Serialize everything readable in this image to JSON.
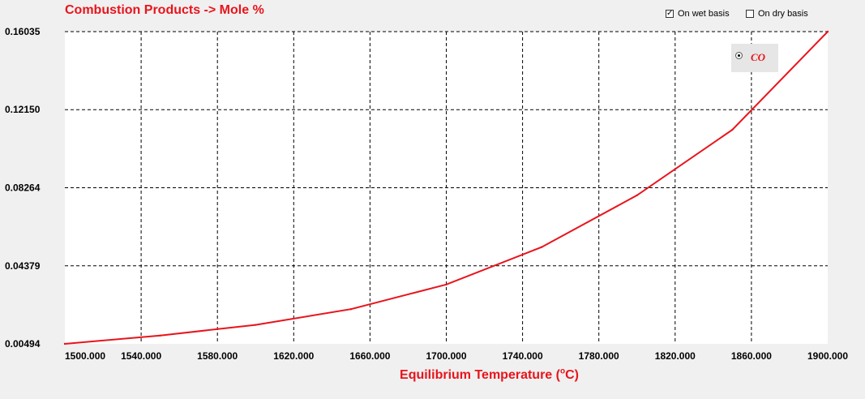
{
  "header": {
    "title": "Combustion Products -> Mole %",
    "wet_basis_label": "On wet basis",
    "wet_basis_checked": true,
    "dry_basis_label": "On dry basis",
    "dry_basis_checked": false
  },
  "legend": {
    "selected": true,
    "label": "CO"
  },
  "colors": {
    "accent": "#e8141c",
    "grid": "#000000",
    "plot_bg": "#ffffff",
    "window_bg": "#f0f0f0"
  },
  "chart_data": {
    "type": "line",
    "title": "Combustion Products -> Mole %",
    "xlabel": "Equilibrium Temperature (oC)",
    "ylabel": "",
    "xlim": [
      1500,
      1900
    ],
    "ylim": [
      0.00494,
      0.16035
    ],
    "x_ticks": [
      "1500.000",
      "1540.000",
      "1580.000",
      "1620.000",
      "1660.000",
      "1700.000",
      "1740.000",
      "1780.000",
      "1820.000",
      "1860.000",
      "1900.000"
    ],
    "y_ticks": [
      "0.00494",
      "0.04379",
      "0.08264",
      "0.12150",
      "0.16035"
    ],
    "grid": true,
    "legend_position": "top-right",
    "series": [
      {
        "name": "CO",
        "color": "#e8141c",
        "x": [
          1500,
          1550,
          1600,
          1650,
          1700,
          1750,
          1800,
          1850,
          1900
        ],
        "y": [
          0.00494,
          0.0091,
          0.0144,
          0.0222,
          0.0345,
          0.0531,
          0.0789,
          0.1115,
          0.16035
        ]
      }
    ]
  }
}
